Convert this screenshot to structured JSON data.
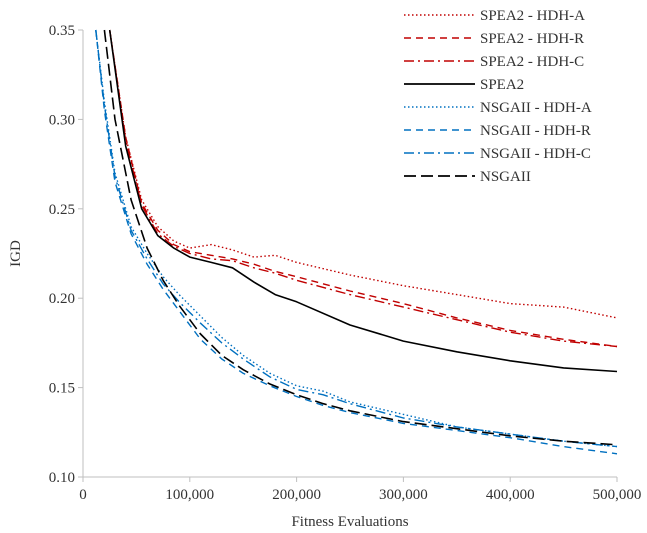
{
  "chart_data": {
    "type": "line",
    "title": "",
    "xlabel": "Fitness Evaluations",
    "ylabel": "IGD",
    "xlim": [
      0,
      500000
    ],
    "ylim": [
      0.1,
      0.35
    ],
    "x_ticks": [
      0,
      100000,
      200000,
      300000,
      400000,
      500000
    ],
    "x_tick_labels": [
      "0",
      "100,000",
      "200,000",
      "300,000",
      "400,000",
      "500,000"
    ],
    "y_ticks": [
      0.1,
      0.15,
      0.2,
      0.25,
      0.3,
      0.35
    ],
    "y_tick_labels": [
      "0.10",
      "0.15",
      "0.20",
      "0.25",
      "0.30",
      "0.35"
    ],
    "grid": false,
    "legend_position": "top-right",
    "series": [
      {
        "name": "SPEA2 - HDH-A",
        "color": "#c00000",
        "dash": "dotted",
        "x": [
          25000,
          40000,
          55000,
          70000,
          85000,
          100000,
          120000,
          140000,
          160000,
          180000,
          200000,
          250000,
          300000,
          350000,
          400000,
          450000,
          500000
        ],
        "y": [
          0.35,
          0.29,
          0.255,
          0.24,
          0.232,
          0.228,
          0.23,
          0.227,
          0.223,
          0.224,
          0.22,
          0.213,
          0.207,
          0.202,
          0.197,
          0.195,
          0.189
        ]
      },
      {
        "name": "SPEA2 - HDH-R",
        "color": "#c00000",
        "dash": "dashed",
        "x": [
          25000,
          40000,
          55000,
          70000,
          85000,
          100000,
          120000,
          140000,
          160000,
          180000,
          200000,
          250000,
          300000,
          350000,
          400000,
          450000,
          500000
        ],
        "y": [
          0.35,
          0.29,
          0.253,
          0.238,
          0.23,
          0.226,
          0.224,
          0.222,
          0.219,
          0.215,
          0.212,
          0.204,
          0.197,
          0.189,
          0.182,
          0.177,
          0.173
        ]
      },
      {
        "name": "SPEA2 - HDH-C",
        "color": "#c00000",
        "dash": "dashdot",
        "x": [
          25000,
          40000,
          55000,
          70000,
          85000,
          100000,
          120000,
          140000,
          160000,
          180000,
          200000,
          250000,
          300000,
          350000,
          400000,
          450000,
          500000
        ],
        "y": [
          0.35,
          0.288,
          0.252,
          0.236,
          0.229,
          0.225,
          0.222,
          0.221,
          0.217,
          0.214,
          0.21,
          0.202,
          0.195,
          0.188,
          0.181,
          0.176,
          0.173
        ]
      },
      {
        "name": "SPEA2",
        "color": "#000000",
        "dash": "solid",
        "x": [
          25000,
          40000,
          55000,
          70000,
          85000,
          100000,
          120000,
          140000,
          160000,
          180000,
          200000,
          250000,
          300000,
          350000,
          400000,
          450000,
          500000
        ],
        "y": [
          0.35,
          0.285,
          0.25,
          0.235,
          0.228,
          0.223,
          0.22,
          0.217,
          0.209,
          0.202,
          0.198,
          0.185,
          0.176,
          0.17,
          0.165,
          0.161,
          0.159
        ]
      },
      {
        "name": "NSGAII - HDH-A",
        "color": "#0070c0",
        "dash": "dotted",
        "x": [
          12000,
          20000,
          30000,
          45000,
          60000,
          75000,
          90000,
          110000,
          130000,
          150000,
          175000,
          200000,
          225000,
          250000,
          300000,
          350000,
          400000,
          450000,
          500000
        ],
        "y": [
          0.35,
          0.31,
          0.27,
          0.24,
          0.225,
          0.212,
          0.202,
          0.19,
          0.178,
          0.168,
          0.158,
          0.151,
          0.148,
          0.142,
          0.135,
          0.128,
          0.124,
          0.12,
          0.117
        ]
      },
      {
        "name": "NSGAII - HDH-R",
        "color": "#0070c0",
        "dash": "dashed",
        "x": [
          12000,
          20000,
          30000,
          45000,
          60000,
          75000,
          90000,
          110000,
          130000,
          150000,
          175000,
          200000,
          225000,
          250000,
          300000,
          350000,
          400000,
          450000,
          500000
        ],
        "y": [
          0.35,
          0.305,
          0.265,
          0.236,
          0.219,
          0.205,
          0.193,
          0.177,
          0.166,
          0.158,
          0.151,
          0.145,
          0.14,
          0.136,
          0.13,
          0.126,
          0.122,
          0.117,
          0.113
        ]
      },
      {
        "name": "NSGAII - HDH-C",
        "color": "#0070c0",
        "dash": "dashdot",
        "x": [
          12000,
          20000,
          30000,
          45000,
          60000,
          75000,
          90000,
          110000,
          130000,
          150000,
          175000,
          200000,
          225000,
          250000,
          300000,
          350000,
          400000,
          450000,
          500000
        ],
        "y": [
          0.35,
          0.308,
          0.268,
          0.238,
          0.222,
          0.208,
          0.198,
          0.186,
          0.175,
          0.166,
          0.156,
          0.149,
          0.146,
          0.141,
          0.133,
          0.128,
          0.124,
          0.12,
          0.117
        ]
      },
      {
        "name": "NSGAII",
        "color": "#000000",
        "dash": "longdash",
        "x": [
          20000,
          30000,
          45000,
          60000,
          75000,
          90000,
          110000,
          130000,
          150000,
          175000,
          200000,
          225000,
          250000,
          300000,
          350000,
          400000,
          450000,
          500000
        ],
        "y": [
          0.35,
          0.3,
          0.255,
          0.228,
          0.21,
          0.196,
          0.18,
          0.168,
          0.16,
          0.152,
          0.146,
          0.141,
          0.137,
          0.131,
          0.127,
          0.123,
          0.12,
          0.118
        ]
      }
    ]
  }
}
